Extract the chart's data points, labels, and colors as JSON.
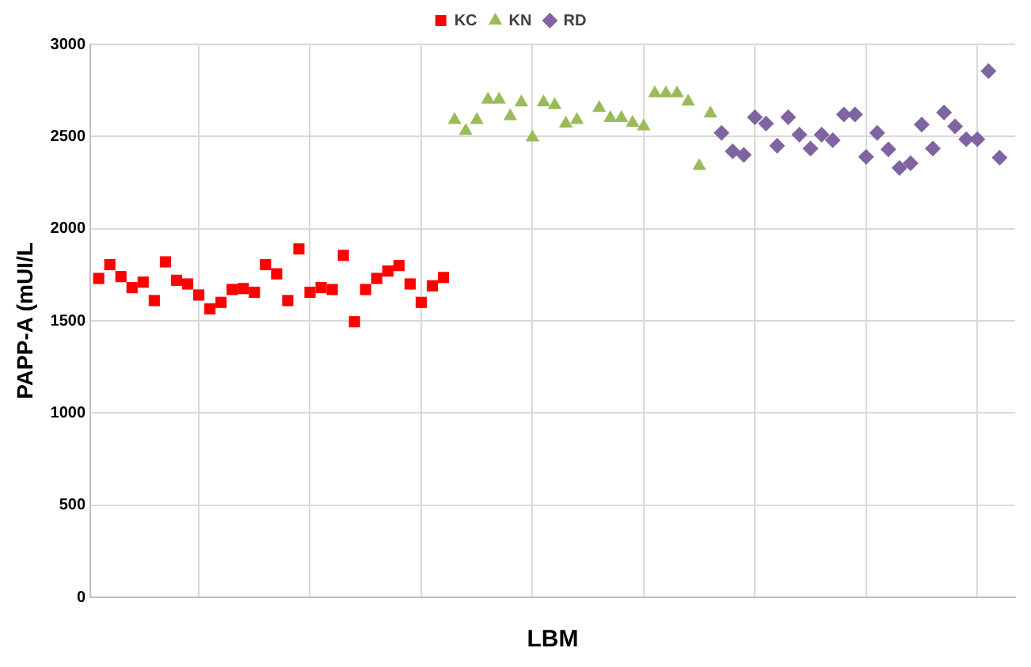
{
  "chart_data": {
    "type": "scatter",
    "xlabel": "LBM",
    "ylabel": "PAPP-A (mUI/L",
    "ylim": [
      0,
      3000
    ],
    "yticks": [
      0,
      500,
      1000,
      1500,
      2000,
      2500,
      3000
    ],
    "grid": true,
    "legend": "top",
    "tick_labels": "y",
    "categories": [
      null,
      null,
      null,
      null,
      null,
      null,
      null,
      null,
      null,
      null,
      null,
      null,
      null,
      null,
      null,
      null,
      null,
      null,
      null,
      null,
      null,
      null,
      null,
      null,
      null,
      null,
      null,
      null,
      null,
      null,
      null,
      null,
      null,
      null,
      null,
      null,
      null,
      null,
      null,
      null,
      null,
      null,
      null,
      null,
      null,
      null,
      null,
      null,
      null,
      null,
      null,
      null,
      null,
      null,
      null,
      null,
      null,
      null,
      null,
      null,
      null,
      null,
      null,
      null,
      null,
      null,
      null,
      null,
      null,
      null,
      null,
      null,
      null,
      null,
      null,
      null,
      null,
      null,
      null,
      null,
      null,
      null,
      null
    ],
    "series": [
      {
        "name": "KC",
        "color": "#ff0000",
        "marker": "square",
        "values": [
          1730,
          1805,
          1740,
          1680,
          1710,
          1610,
          1820,
          1720,
          1700,
          1640,
          1565,
          1600,
          1670,
          1675,
          1655,
          1805,
          1755,
          1610,
          1890,
          1655,
          1680,
          1670,
          1855,
          1495,
          1670,
          1730,
          1770,
          1800,
          1700,
          1600,
          1690,
          1735,
          null,
          null,
          null,
          null,
          null,
          null,
          null,
          null,
          null,
          null,
          null,
          null,
          null,
          null,
          null,
          null,
          null,
          null,
          null,
          null,
          null,
          null,
          null,
          null,
          null,
          null,
          null,
          null,
          null,
          null,
          null,
          null,
          null,
          null,
          null,
          null,
          null,
          null,
          null,
          null,
          null,
          null,
          null,
          null,
          null,
          null,
          null,
          null,
          null,
          null,
          null
        ]
      },
      {
        "name": "KN",
        "color": "#9bbb59",
        "marker": "triangle",
        "values": [
          null,
          null,
          null,
          null,
          null,
          null,
          null,
          null,
          null,
          null,
          null,
          null,
          null,
          null,
          null,
          null,
          null,
          null,
          null,
          null,
          null,
          null,
          null,
          null,
          null,
          null,
          null,
          null,
          null,
          null,
          null,
          null,
          2590,
          2530,
          2590,
          2700,
          2700,
          2610,
          2685,
          2495,
          2685,
          2670,
          2570,
          2590,
          null,
          2655,
          2600,
          2600,
          2575,
          2555,
          2735,
          2735,
          2735,
          2690,
          2340,
          2625,
          null,
          null,
          null,
          null,
          null,
          null,
          null,
          null,
          null,
          null,
          null,
          null,
          null,
          null,
          null,
          null,
          null,
          null,
          null,
          null,
          null,
          null,
          null,
          null,
          null,
          null,
          null
        ]
      },
      {
        "name": "RD",
        "color": "#8064a2",
        "marker": "diamond",
        "values": [
          null,
          null,
          null,
          null,
          null,
          null,
          null,
          null,
          null,
          null,
          null,
          null,
          null,
          null,
          null,
          null,
          null,
          null,
          null,
          null,
          null,
          null,
          null,
          null,
          null,
          null,
          null,
          null,
          null,
          null,
          null,
          null,
          null,
          null,
          null,
          null,
          null,
          null,
          null,
          null,
          null,
          null,
          null,
          null,
          null,
          null,
          null,
          null,
          null,
          null,
          null,
          null,
          null,
          null,
          null,
          null,
          2520,
          2420,
          2400,
          2605,
          2570,
          2450,
          2605,
          2510,
          2435,
          2510,
          2480,
          2620,
          2620,
          2390,
          2520,
          2430,
          2330,
          2355,
          2565,
          2435,
          2630,
          2555,
          2485,
          2485,
          2855,
          2385,
          null
        ]
      }
    ]
  }
}
